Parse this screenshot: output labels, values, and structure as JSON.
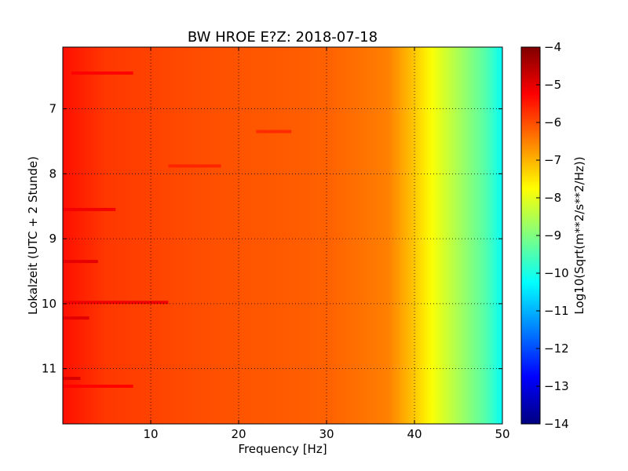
{
  "chart_data": {
    "type": "heatmap",
    "title": "BW HROE E?Z: 2018-07-18",
    "xlabel": "Frequency [Hz]",
    "ylabel": "Lokalzeit (UTC + 2 Stunde)",
    "xlim": [
      0,
      50
    ],
    "ylim": [
      6.05,
      11.85
    ],
    "y_inverted": true,
    "x_ticks": [
      10,
      20,
      30,
      40,
      50
    ],
    "y_ticks": [
      7,
      8,
      9,
      10,
      11
    ],
    "grid": true,
    "colormap": "jet",
    "colorbar": {
      "label": "Log10(Sqrt(m**2/s**2/Hz))",
      "range": [
        -14,
        -4
      ],
      "ticks": [
        -4,
        -5,
        -6,
        -7,
        -8,
        -9,
        -10,
        -11,
        -12,
        -13,
        -14
      ]
    },
    "spectrum_profile": [
      {
        "freq": 0,
        "value": -5.4
      },
      {
        "freq": 5,
        "value": -5.8
      },
      {
        "freq": 15,
        "value": -6.0
      },
      {
        "freq": 30,
        "value": -6.2
      },
      {
        "freq": 37,
        "value": -6.5
      },
      {
        "freq": 40,
        "value": -7.2
      },
      {
        "freq": 42,
        "value": -7.8
      },
      {
        "freq": 45,
        "value": -8.6
      },
      {
        "freq": 48,
        "value": -9.4
      },
      {
        "freq": 50,
        "value": -10.2
      }
    ],
    "bands": [
      {
        "time": 6.45,
        "f0": 1,
        "f1": 8,
        "delta": 0.5
      },
      {
        "time": 7.35,
        "f0": 22,
        "f1": 26,
        "delta": 0.45
      },
      {
        "time": 7.88,
        "f0": 12,
        "f1": 18,
        "delta": 0.4
      },
      {
        "time": 8.55,
        "f0": 0,
        "f1": 6,
        "delta": 0.5
      },
      {
        "time": 9.35,
        "f0": 0,
        "f1": 4,
        "delta": 0.55
      },
      {
        "time": 9.98,
        "f0": 0,
        "f1": 12,
        "delta": 0.7
      },
      {
        "time": 10.22,
        "f0": 0,
        "f1": 3,
        "delta": 0.55
      },
      {
        "time": 11.15,
        "f0": 0,
        "f1": 2,
        "delta": 0.6
      },
      {
        "time": 11.27,
        "f0": 0,
        "f1": 8,
        "delta": 0.45
      }
    ]
  }
}
